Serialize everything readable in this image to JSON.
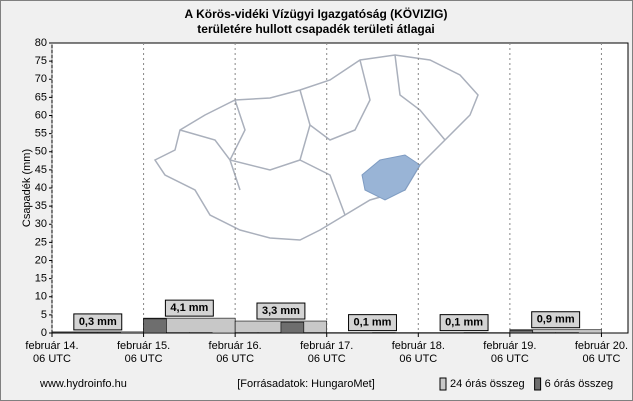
{
  "chart_data": {
    "type": "bar",
    "title": [
      "A Körös-vidéki Vízügyi Igazgatóság (KÖVIZIG)",
      "területére hullott csapadék területi átlagai"
    ],
    "y_label": "Csapadék (mm)",
    "ylim": [
      0,
      80
    ],
    "yticks": [
      0,
      5,
      10,
      15,
      20,
      25,
      30,
      35,
      40,
      45,
      50,
      55,
      60,
      65,
      70,
      75,
      80
    ],
    "xlim": [
      0,
      6.29
    ],
    "xticks": [
      {
        "value": 0,
        "label": "február 14.\n06 UTC"
      },
      {
        "value": 1,
        "label": "február 15.\n06 UTC"
      },
      {
        "value": 2,
        "label": "február 16.\n06 UTC"
      },
      {
        "value": 3,
        "label": "február 17.\n06 UTC"
      },
      {
        "value": 4,
        "label": "február 18.\n06 UTC"
      },
      {
        "value": 5,
        "label": "február 19.\n06 UTC"
      },
      {
        "value": 6,
        "label": "február 20.\n06 UTC"
      }
    ],
    "grid": true,
    "series": [
      {
        "name": "24 órás összeg",
        "color": "#c8c8c8",
        "bins": [
          0,
          1,
          2,
          3,
          4,
          5,
          6
        ],
        "values": [
          0.3,
          4.1,
          3.3,
          0.1,
          0.1,
          0.9
        ],
        "value_labels": [
          "0,3 mm",
          "4,1 mm",
          "3,3 mm",
          "0,1 mm",
          "0,1 mm",
          "0,9 mm"
        ]
      },
      {
        "name": "6 órás összeg",
        "color": "#6e6e6e",
        "bins": [
          0,
          0.25,
          0.5,
          0.75,
          1,
          1.25,
          1.5,
          1.75,
          2,
          2.25,
          2.5,
          2.75,
          3,
          3.25,
          3.5,
          3.75,
          4,
          4.25,
          4.5,
          4.75,
          5,
          5.25,
          5.5,
          5.75,
          6
        ],
        "values": [
          0.1,
          0.1,
          0.1,
          0,
          3.9,
          0.1,
          0.1,
          0,
          0.1,
          0.1,
          3.0,
          0.1,
          0,
          0,
          0.1,
          0,
          0,
          0,
          0.1,
          0,
          0.7,
          0.1,
          0.1,
          0
        ]
      }
    ],
    "legend": "bottom-right",
    "footer_left": "www.hydroinfo.hu",
    "footer_center": "[Forrásadatok: HungaroMet]"
  }
}
